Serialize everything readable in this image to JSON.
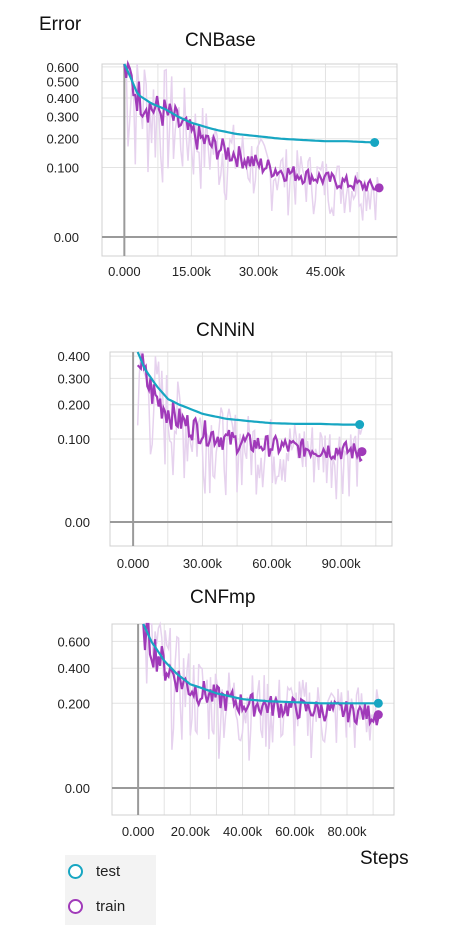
{
  "labels": {
    "y_label": "Error",
    "x_label": "Steps"
  },
  "legend": [
    {
      "label": "test",
      "color": "#17a6c2"
    },
    {
      "label": "train",
      "color": "#a03ab9"
    }
  ],
  "colors": {
    "test": "#17a6c2",
    "train": "#a03ab9",
    "train_raw": "#e6d2ee",
    "grid": "#e3e3e3",
    "axis": "#9a9a9a"
  },
  "chart_data": [
    {
      "type": "line",
      "title": "CNBase",
      "xlabel": "",
      "ylabel": "",
      "xlim": [
        -5000,
        61000
      ],
      "ylim": [
        -0.02,
        0.62
      ],
      "y_scale": "sqrt",
      "x_ticks": [
        0,
        15000,
        30000,
        45000
      ],
      "x_tick_labels": [
        "0.000",
        "15.00k",
        "30.00k",
        "45.00k"
      ],
      "y_ticks": [
        0.0,
        0.1,
        0.2,
        0.3,
        0.4,
        0.5,
        0.6
      ],
      "y_tick_labels": [
        "0.00",
        "0.100",
        "0.200",
        "0.300",
        "0.400",
        "0.500",
        "0.600"
      ],
      "grid": true,
      "series": [
        {
          "name": "test",
          "x": [
            0,
            3000,
            6000,
            9000,
            12000,
            15000,
            20000,
            25000,
            30000,
            35000,
            40000,
            45000,
            50000,
            56000
          ],
          "y": [
            0.62,
            0.42,
            0.37,
            0.34,
            0.3,
            0.27,
            0.24,
            0.22,
            0.21,
            0.2,
            0.195,
            0.19,
            0.19,
            0.185
          ]
        },
        {
          "name": "train",
          "x": [
            0,
            3000,
            6000,
            9000,
            12000,
            15000,
            20000,
            25000,
            30000,
            35000,
            40000,
            45000,
            50000,
            54000,
            57000
          ],
          "y": [
            0.6,
            0.42,
            0.35,
            0.32,
            0.27,
            0.22,
            0.17,
            0.14,
            0.11,
            0.09,
            0.08,
            0.07,
            0.06,
            0.055,
            0.05
          ]
        }
      ]
    },
    {
      "type": "line",
      "title": "CNNiN",
      "xlabel": "",
      "ylabel": "",
      "xlim": [
        -10000,
        112000
      ],
      "ylim": [
        -0.02,
        0.42
      ],
      "y_scale": "sqrt",
      "x_ticks": [
        0,
        30000,
        60000,
        90000
      ],
      "x_tick_labels": [
        "0.000",
        "30.00k",
        "60.00k",
        "90.00k"
      ],
      "y_ticks": [
        0.0,
        0.1,
        0.2,
        0.3,
        0.4
      ],
      "y_tick_labels": [
        "0.00",
        "0.100",
        "0.200",
        "0.300",
        "0.400"
      ],
      "grid": true,
      "series": [
        {
          "name": "test",
          "x": [
            2000,
            5000,
            10000,
            15000,
            20000,
            30000,
            40000,
            50000,
            60000,
            70000,
            80000,
            90000,
            98000
          ],
          "y": [
            0.42,
            0.34,
            0.27,
            0.22,
            0.2,
            0.17,
            0.155,
            0.148,
            0.142,
            0.14,
            0.14,
            0.138,
            0.138
          ]
        },
        {
          "name": "train",
          "x": [
            2000,
            5000,
            10000,
            15000,
            20000,
            30000,
            40000,
            50000,
            60000,
            70000,
            80000,
            90000,
            99000
          ],
          "y": [
            0.42,
            0.3,
            0.22,
            0.18,
            0.15,
            0.12,
            0.1,
            0.09,
            0.085,
            0.08,
            0.078,
            0.075,
            0.072
          ]
        }
      ]
    },
    {
      "type": "line",
      "title": "CNFmp",
      "xlabel": "",
      "ylabel": "",
      "xlim": [
        -10000,
        98000
      ],
      "ylim": [
        -0.02,
        0.75
      ],
      "y_scale": "sqrt",
      "x_ticks": [
        0,
        20000,
        40000,
        60000,
        80000
      ],
      "x_tick_labels": [
        "0.000",
        "20.00k",
        "40.00k",
        "60.00k",
        "80.00k"
      ],
      "y_ticks": [
        0.0,
        0.2,
        0.4,
        0.6
      ],
      "y_tick_labels": [
        "0.00",
        "0.200",
        "0.400",
        "0.600"
      ],
      "grid": true,
      "series": [
        {
          "name": "test",
          "x": [
            2000,
            5000,
            10000,
            15000,
            20000,
            30000,
            40000,
            50000,
            60000,
            70000,
            80000,
            92000
          ],
          "y": [
            0.75,
            0.6,
            0.45,
            0.36,
            0.3,
            0.25,
            0.22,
            0.21,
            0.205,
            0.2,
            0.2,
            0.2
          ]
        },
        {
          "name": "train",
          "x": [
            2000,
            5000,
            10000,
            15000,
            20000,
            30000,
            40000,
            50000,
            60000,
            70000,
            80000,
            92000
          ],
          "y": [
            0.75,
            0.58,
            0.42,
            0.34,
            0.28,
            0.23,
            0.2,
            0.19,
            0.18,
            0.17,
            0.165,
            0.15
          ]
        }
      ]
    }
  ]
}
